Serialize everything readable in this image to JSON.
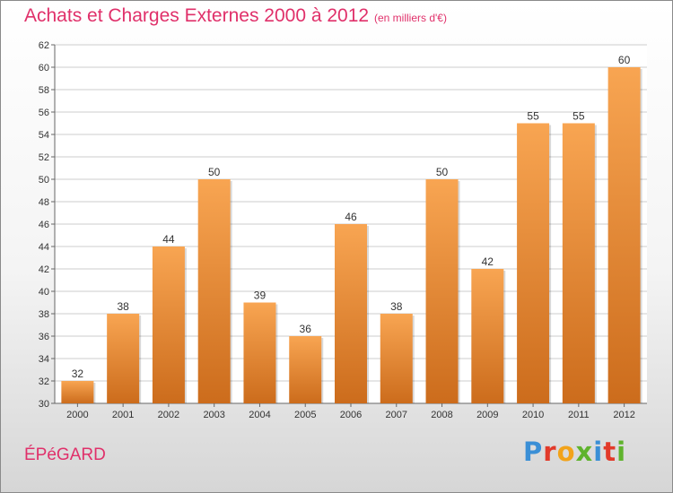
{
  "header": {
    "title": "Achats et Charges Externes 2000 à 2012",
    "subtitle": "(en milliers d'€)"
  },
  "footer": {
    "commune": "ÉPéGARD",
    "brand": "Proxiti",
    "brand_letters": [
      {
        "ch": "P",
        "color": "#3a8fd6"
      },
      {
        "ch": "r",
        "color": "#e23a2a"
      },
      {
        "ch": "o",
        "color": "#f2a31a"
      },
      {
        "ch": "x",
        "color": "#5fb32d"
      },
      {
        "ch": "i",
        "color": "#3a8fd6"
      },
      {
        "ch": "t",
        "color": "#e23a2a"
      },
      {
        "ch": "i",
        "color": "#5fb32d"
      }
    ]
  },
  "colors": {
    "title": "#e0306a",
    "bar_light": "#f8a552",
    "bar_dark": "#cc6c1c",
    "grid": "#cccccc"
  },
  "chart_data": {
    "type": "bar",
    "categories": [
      "2000",
      "2001",
      "2002",
      "2003",
      "2004",
      "2005",
      "2006",
      "2007",
      "2008",
      "2009",
      "2010",
      "2011",
      "2012"
    ],
    "values": [
      32,
      38,
      44,
      50,
      39,
      36,
      46,
      38,
      50,
      42,
      55,
      55,
      60
    ],
    "title": "Achats et Charges Externes 2000 à 2012",
    "subtitle": "(en milliers d'€)",
    "ylim": [
      30,
      62
    ],
    "yticks": [
      30,
      32,
      34,
      36,
      38,
      40,
      42,
      44,
      46,
      48,
      50,
      52,
      54,
      56,
      58,
      60,
      62
    ],
    "grid": true,
    "data_labels": true
  }
}
